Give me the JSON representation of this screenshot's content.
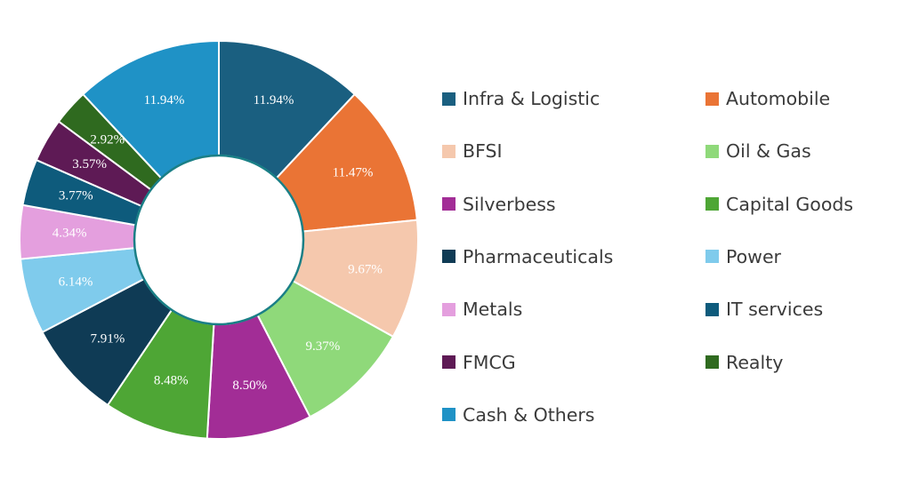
{
  "chart_data": {
    "type": "pie",
    "donut": true,
    "legend_position": "right",
    "slices": [
      {
        "label": "Infra & Logistic",
        "value": 11.94,
        "value_label": "11.94%",
        "color": "#1a5f80"
      },
      {
        "label": "Automobile",
        "value": 11.47,
        "value_label": "11.47%",
        "color": "#ea7435"
      },
      {
        "label": "BFSI",
        "value": 9.67,
        "value_label": "9.67%",
        "color": "#f5c8ad"
      },
      {
        "label": "Oil & Gas",
        "value": 9.37,
        "value_label": "9.37%",
        "color": "#8fd97a"
      },
      {
        "label": "Silverbess",
        "value": 8.5,
        "value_label": "8.50%",
        "color": "#a22d96"
      },
      {
        "label": "Capital Goods",
        "value": 8.48,
        "value_label": "8.48%",
        "color": "#4ea635"
      },
      {
        "label": "Pharmaceuticals",
        "value": 7.91,
        "value_label": "7.91%",
        "color": "#0f3b55"
      },
      {
        "label": "Power",
        "value": 6.14,
        "value_label": "6.14%",
        "color": "#7fcbec"
      },
      {
        "label": "Metals",
        "value": 4.34,
        "value_label": "4.34%",
        "color": "#e49fde"
      },
      {
        "label": "IT services",
        "value": 3.77,
        "value_label": "3.77%",
        "color": "#0e5b7c"
      },
      {
        "label": "FMCG",
        "value": 3.57,
        "value_label": "3.57%",
        "color": "#5e1a55"
      },
      {
        "label": "Realty",
        "value": 2.92,
        "value_label": "2.92%",
        "color": "#2f6a1f"
      },
      {
        "label": "Cash & Others",
        "value": 11.94,
        "value_label": "11.94%",
        "color": "#1f92c6"
      }
    ]
  },
  "colors": {
    "inner_ring": "#1a7f86",
    "slice_border": "#ffffff",
    "legend_text": "#3b3b3b"
  }
}
